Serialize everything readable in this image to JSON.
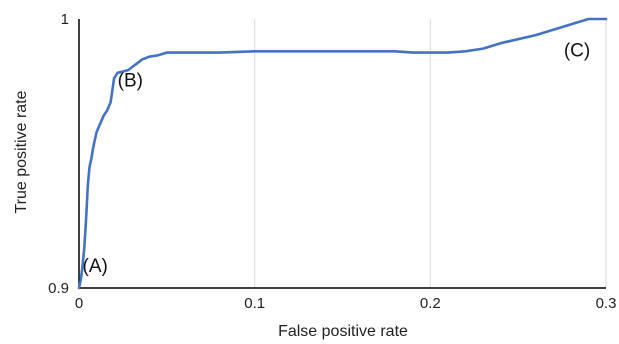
{
  "colors": {
    "series": "#4472c4",
    "grid": "#d9d9d9",
    "axis": "#000000"
  },
  "chart_data": {
    "type": "line",
    "title": "",
    "xlabel": "False positive rate",
    "ylabel": "True positive rate",
    "xlim": [
      0,
      0.3
    ],
    "ylim": [
      0.9,
      1
    ],
    "xticks": [
      0,
      0.1,
      0.2,
      0.3
    ],
    "xtick_labels": [
      "0",
      "0.1",
      "0.2",
      "0.3"
    ],
    "yticks": [
      0.9,
      1
    ],
    "ytick_labels": [
      "0.9",
      "1"
    ],
    "grid": "vertical",
    "legend": "none",
    "series": [
      {
        "x": [
          0,
          0.001,
          0.002,
          0.003,
          0.004,
          0.005,
          0.006,
          0.007,
          0.008,
          0.009,
          0.01,
          0.012,
          0.014,
          0.016,
          0.018,
          0.02,
          0.022,
          0.025,
          0.028,
          0.03,
          0.033,
          0.036,
          0.04,
          0.045,
          0.05,
          0.06,
          0.08,
          0.1,
          0.12,
          0.14,
          0.16,
          0.18,
          0.19,
          0.2,
          0.21,
          0.22,
          0.23,
          0.24,
          0.26,
          0.28,
          0.29,
          0.3
        ],
        "y": [
          0.9,
          0.903,
          0.908,
          0.915,
          0.925,
          0.938,
          0.945,
          0.948,
          0.952,
          0.955,
          0.958,
          0.961,
          0.964,
          0.966,
          0.969,
          0.978,
          0.98,
          0.9805,
          0.981,
          0.982,
          0.9835,
          0.985,
          0.986,
          0.9865,
          0.9875,
          0.9875,
          0.9875,
          0.988,
          0.988,
          0.988,
          0.988,
          0.988,
          0.9875,
          0.9875,
          0.9875,
          0.988,
          0.989,
          0.991,
          0.994,
          0.998,
          1,
          1
        ]
      }
    ],
    "annotations": [
      {
        "text": "(A)",
        "x": 0.002,
        "y": 0.906
      },
      {
        "text": "(B)",
        "x": 0.022,
        "y": 0.975
      },
      {
        "text": "(C)",
        "x": 0.276,
        "y": 0.986
      }
    ]
  }
}
